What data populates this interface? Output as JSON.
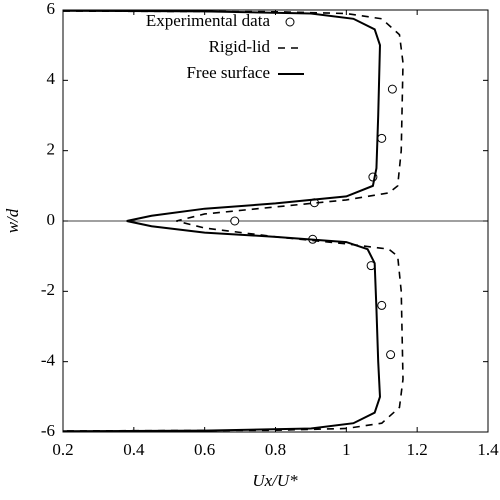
{
  "chart_data": {
    "type": "line",
    "xlabel": "Ux/U*",
    "ylabel": "w/d",
    "xlim": [
      0.2,
      1.4
    ],
    "xticks": [
      0.2,
      0.4,
      0.6,
      0.8,
      1,
      1.2,
      1.4
    ],
    "ylim": [
      -6,
      6
    ],
    "yticks": [
      -6,
      -4,
      -2,
      0,
      2,
      4,
      6
    ],
    "legend": "upper-left",
    "series": [
      {
        "name": "Experimental data",
        "color": "#000000",
        "style": "markers",
        "x": [
          1.13,
          1.1,
          1.075,
          0.91,
          0.685,
          0.905,
          1.07,
          1.1,
          1.125
        ],
        "values": [
          3.75,
          2.35,
          1.25,
          0.52,
          0,
          -0.52,
          -1.27,
          -2.4,
          -3.8
        ]
      },
      {
        "name": "Rigid-lid",
        "color": "#000000",
        "style": "dashed",
        "x": [
          0.2,
          0.8,
          1.0,
          1.1,
          1.15,
          1.16,
          1.155,
          1.145,
          1.12,
          1.0,
          0.8,
          0.6,
          0.52,
          0.6,
          0.8,
          1.0,
          1.12,
          1.145,
          1.155,
          1.16,
          1.15,
          1.1,
          1.0,
          0.8,
          0.2
        ],
        "values": [
          5.97,
          5.95,
          5.9,
          5.75,
          5.3,
          4.5,
          2,
          1.0,
          0.8,
          0.6,
          0.4,
          0.2,
          0,
          -0.2,
          -0.45,
          -0.65,
          -0.8,
          -1.0,
          -2,
          -4.5,
          -5.3,
          -5.75,
          -5.9,
          -5.95,
          -5.97
        ]
      },
      {
        "name": "Free surface",
        "color": "#000000",
        "style": "solid",
        "x": [
          0.2,
          0.6,
          0.9,
          1.02,
          1.08,
          1.095,
          1.09,
          1.085,
          1.075,
          1.0,
          0.8,
          0.6,
          0.45,
          0.38,
          0.45,
          0.6,
          0.8,
          1.0,
          1.06,
          1.08,
          1.085,
          1.09,
          1.095,
          1.08,
          1.02,
          0.9,
          0.6,
          0.2
        ],
        "values": [
          5.98,
          5.96,
          5.9,
          5.75,
          5.45,
          5.0,
          3,
          1.5,
          1.0,
          0.7,
          0.5,
          0.35,
          0.15,
          0,
          -0.15,
          -0.33,
          -0.45,
          -0.6,
          -0.8,
          -1.2,
          -2.5,
          -4,
          -5.0,
          -5.45,
          -5.75,
          -5.9,
          -5.96,
          -5.98
        ]
      }
    ]
  }
}
